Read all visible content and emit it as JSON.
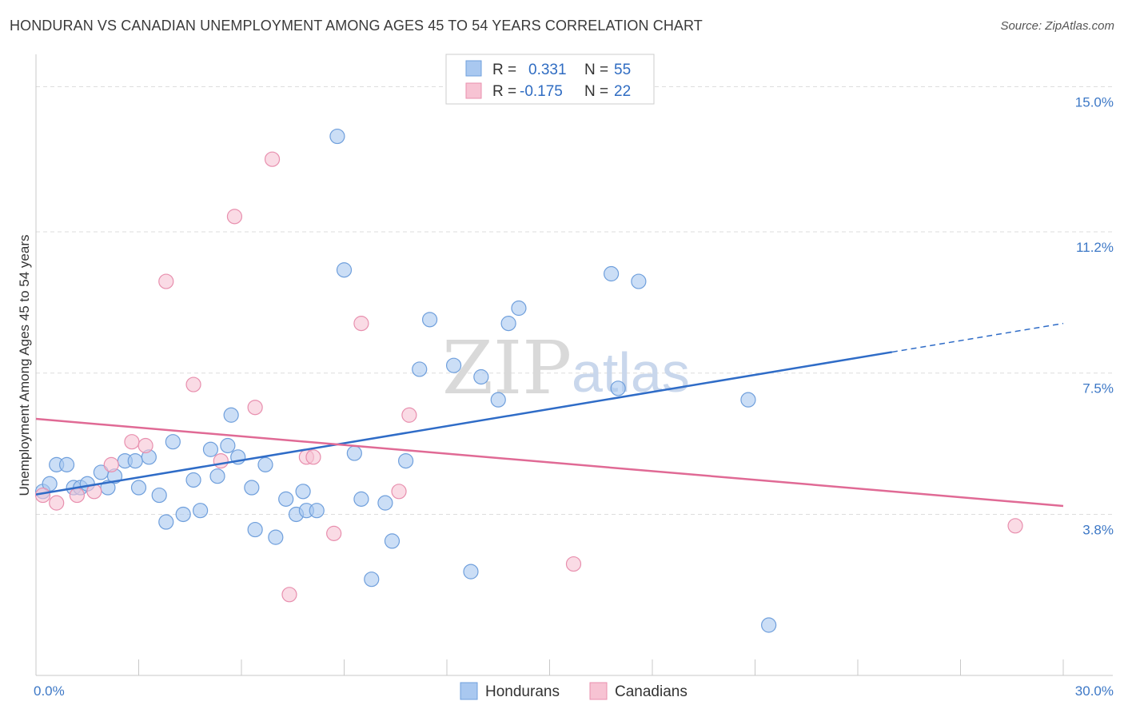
{
  "title": "HONDURAN VS CANADIAN UNEMPLOYMENT AMONG AGES 45 TO 54 YEARS CORRELATION CHART",
  "source": "Source: ZipAtlas.com",
  "watermark": {
    "zip": "ZIP",
    "atlas": "atlas"
  },
  "colors": {
    "hondurans_fill": "#a9c8f0",
    "hondurans_stroke": "#6f9fdc",
    "hondurans_line": "#2f6cc7",
    "canadians_fill": "#f7c3d3",
    "canadians_stroke": "#e88fae",
    "canadians_line": "#e06a95",
    "grid": "#dddddd",
    "axis_label": "#3d78c6"
  },
  "legend": {
    "hondurans": {
      "r_label": "R = ",
      "r_value": "0.331",
      "n_label": "N = ",
      "n_value": "55"
    },
    "canadians": {
      "r_label": "R = ",
      "r_value": "-0.175",
      "n_label": "N = ",
      "n_value": "22"
    }
  },
  "chart_data": {
    "type": "scatter",
    "title": "HONDURAN VS CANADIAN UNEMPLOYMENT AMONG AGES 45 TO 54 YEARS CORRELATION CHART",
    "xlabel": "",
    "ylabel": "Unemployment Among Ages 45 to 54 years",
    "xlim": [
      0,
      30
    ],
    "ylim": [
      0,
      15.7
    ],
    "x_tick_labels": [
      "0.0%",
      "30.0%"
    ],
    "y_ticks": [
      3.8,
      7.5,
      11.2,
      15.0
    ],
    "y_tick_labels": [
      "3.8%",
      "7.5%",
      "11.2%",
      "15.0%"
    ],
    "grid": true,
    "legend_position": "bottom-center",
    "series": [
      {
        "name": "Hondurans",
        "points": [
          [
            0.2,
            4.4
          ],
          [
            0.4,
            4.6
          ],
          [
            0.6,
            5.1
          ],
          [
            0.9,
            5.1
          ],
          [
            1.1,
            4.5
          ],
          [
            1.3,
            4.5
          ],
          [
            1.5,
            4.6
          ],
          [
            1.9,
            4.9
          ],
          [
            2.1,
            4.5
          ],
          [
            2.3,
            4.8
          ],
          [
            2.6,
            5.2
          ],
          [
            2.9,
            5.2
          ],
          [
            3.0,
            4.5
          ],
          [
            3.3,
            5.3
          ],
          [
            3.6,
            4.3
          ],
          [
            3.8,
            3.6
          ],
          [
            4.0,
            5.7
          ],
          [
            4.3,
            3.8
          ],
          [
            4.6,
            4.7
          ],
          [
            4.8,
            3.9
          ],
          [
            5.1,
            5.5
          ],
          [
            5.3,
            4.8
          ],
          [
            5.6,
            5.6
          ],
          [
            5.7,
            6.4
          ],
          [
            5.9,
            5.3
          ],
          [
            6.3,
            4.5
          ],
          [
            6.4,
            3.4
          ],
          [
            6.7,
            5.1
          ],
          [
            7.0,
            3.2
          ],
          [
            7.3,
            4.2
          ],
          [
            7.6,
            3.8
          ],
          [
            7.8,
            4.4
          ],
          [
            7.9,
            3.9
          ],
          [
            8.2,
            3.9
          ],
          [
            8.8,
            13.7
          ],
          [
            9.0,
            10.2
          ],
          [
            9.3,
            5.4
          ],
          [
            9.5,
            4.2
          ],
          [
            9.8,
            2.1
          ],
          [
            10.2,
            4.1
          ],
          [
            10.4,
            3.1
          ],
          [
            10.8,
            5.2
          ],
          [
            11.2,
            7.6
          ],
          [
            11.5,
            8.9
          ],
          [
            12.2,
            7.7
          ],
          [
            12.7,
            2.3
          ],
          [
            13.0,
            7.4
          ],
          [
            13.5,
            6.8
          ],
          [
            13.8,
            8.8
          ],
          [
            14.1,
            9.2
          ],
          [
            16.8,
            10.1
          ],
          [
            17.0,
            7.1
          ],
          [
            17.6,
            9.9
          ],
          [
            20.8,
            6.8
          ],
          [
            21.4,
            0.9
          ]
        ],
        "trend": {
          "x": [
            0,
            25
          ],
          "y": [
            4.32,
            8.05
          ],
          "dashed_to": [
            30,
            8.8
          ]
        }
      },
      {
        "name": "Canadians",
        "points": [
          [
            0.2,
            4.3
          ],
          [
            0.6,
            4.1
          ],
          [
            1.2,
            4.3
          ],
          [
            1.7,
            4.4
          ],
          [
            2.2,
            5.1
          ],
          [
            2.8,
            5.7
          ],
          [
            3.2,
            5.6
          ],
          [
            3.8,
            9.9
          ],
          [
            4.6,
            7.2
          ],
          [
            5.4,
            5.2
          ],
          [
            5.8,
            11.6
          ],
          [
            6.4,
            6.6
          ],
          [
            6.9,
            13.1
          ],
          [
            7.4,
            1.7
          ],
          [
            7.9,
            5.3
          ],
          [
            8.1,
            5.3
          ],
          [
            8.7,
            3.3
          ],
          [
            9.5,
            8.8
          ],
          [
            10.6,
            4.4
          ],
          [
            10.9,
            6.4
          ],
          [
            15.7,
            2.5
          ],
          [
            28.6,
            3.5
          ]
        ],
        "trend": {
          "x": [
            0,
            30
          ],
          "y": [
            6.3,
            4.02
          ]
        }
      }
    ]
  }
}
